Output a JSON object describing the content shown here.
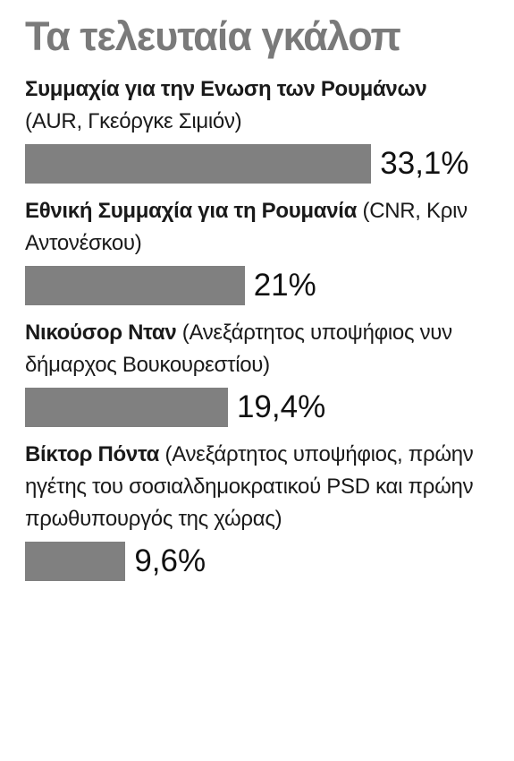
{
  "chart_data": {
    "type": "bar",
    "title": "Τα τελευταία γκάλοπ",
    "categories": [
      "Συμμαχία για την Ενωση των Ρουμάνων",
      "Εθνική Συμμαχία για τη Ρουμανία",
      "Νικούσορ Νταν",
      "Βίκτορ Πόντα"
    ],
    "descriptions": [
      "(AUR, Γκεόργκε Σιμιόν)",
      "(CNR, Κριν Αντονέσκου)",
      "(Ανεξάρτητος υποψήφιος νυν δήμαρχος Βουκουρεστίου)",
      "(Ανεξάρτητος υποψήφιος, πρώην ηγέτης του σοσιαλδημοκρατικού PSD και πρώην πρωθυπουργός της χώρας)"
    ],
    "values": [
      33.1,
      21,
      19.4,
      9.6
    ],
    "value_labels": [
      "33,1%",
      "21%",
      "19,4%",
      "9,6%"
    ],
    "color": "#808080"
  }
}
